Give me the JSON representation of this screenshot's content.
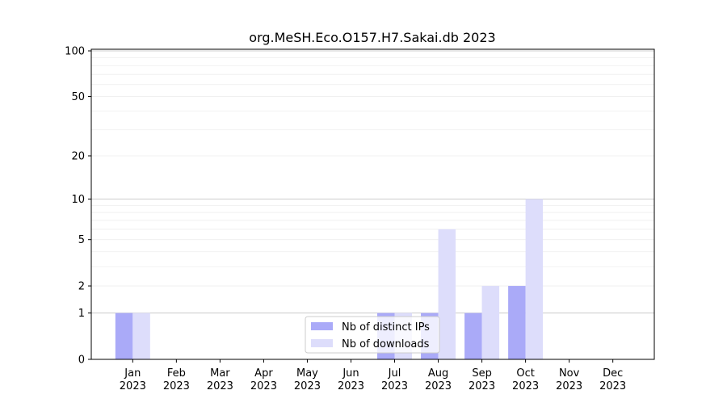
{
  "chart_data": {
    "type": "bar",
    "title": "org.MeSH.Eco.O157.H7.Sakai.db 2023",
    "xlabel": "",
    "ylabel": "",
    "y_scale": "log(1+y)",
    "ylim": [
      0,
      100
    ],
    "yticks": [
      "0",
      "1",
      "2",
      "5",
      "10",
      "20",
      "50",
      "100"
    ],
    "grid": true,
    "legend_position": "bottom-center",
    "categories": [
      {
        "month": "Jan",
        "year": "2023"
      },
      {
        "month": "Feb",
        "year": "2023"
      },
      {
        "month": "Mar",
        "year": "2023"
      },
      {
        "month": "Apr",
        "year": "2023"
      },
      {
        "month": "May",
        "year": "2023"
      },
      {
        "month": "Jun",
        "year": "2023"
      },
      {
        "month": "Jul",
        "year": "2023"
      },
      {
        "month": "Aug",
        "year": "2023"
      },
      {
        "month": "Sep",
        "year": "2023"
      },
      {
        "month": "Oct",
        "year": "2023"
      },
      {
        "month": "Nov",
        "year": "2023"
      },
      {
        "month": "Dec",
        "year": "2023"
      }
    ],
    "series": [
      {
        "name": "Nb of distinct IPs",
        "color": "#aaaaf8",
        "values": [
          1,
          0,
          0,
          0,
          0,
          0,
          1,
          1,
          1,
          2,
          0,
          0
        ]
      },
      {
        "name": "Nb of downloads",
        "color": "#ddddfb",
        "values": [
          1,
          0,
          0,
          0,
          0,
          0,
          1,
          6,
          2,
          10,
          0,
          0
        ]
      }
    ]
  }
}
